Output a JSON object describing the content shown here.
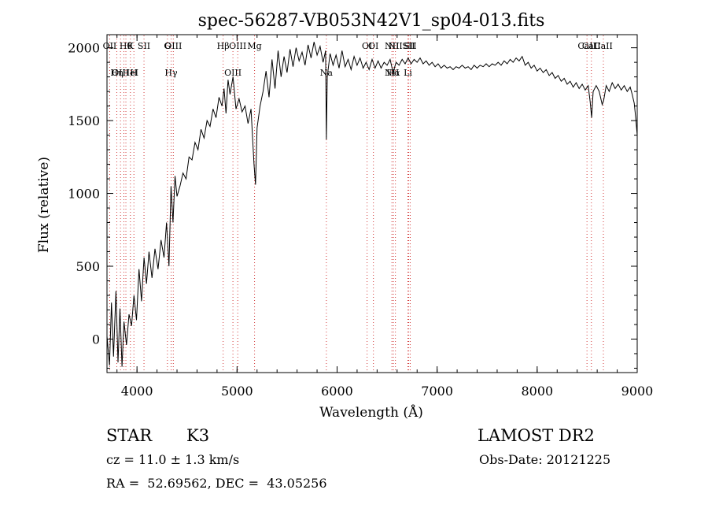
{
  "chart_data": {
    "type": "line",
    "title": "spec-56287-VB053N42V1_sp04-013.fits",
    "xlabel": "Wavelength (Å)",
    "ylabel": "Flux (relative)",
    "xlim": [
      3700,
      9000
    ],
    "ylim": [
      -230,
      2090
    ],
    "x_ticks": [
      4000,
      5000,
      6000,
      7000,
      8000,
      9000
    ],
    "y_ticks": [
      0,
      500,
      1000,
      1500,
      2000
    ],
    "grid": false,
    "series": [
      {
        "points": [
          [
            3700,
            20
          ],
          [
            3725,
            -180
          ],
          [
            3745,
            250
          ],
          [
            3765,
            -120
          ],
          [
            3790,
            330
          ],
          [
            3810,
            -160
          ],
          [
            3830,
            210
          ],
          [
            3850,
            -190
          ],
          [
            3870,
            120
          ],
          [
            3895,
            -40
          ],
          [
            3920,
            170
          ],
          [
            3945,
            90
          ],
          [
            3970,
            300
          ],
          [
            3995,
            130
          ],
          [
            4020,
            480
          ],
          [
            4045,
            260
          ],
          [
            4070,
            560
          ],
          [
            4095,
            380
          ],
          [
            4120,
            600
          ],
          [
            4150,
            420
          ],
          [
            4180,
            620
          ],
          [
            4210,
            480
          ],
          [
            4240,
            680
          ],
          [
            4270,
            560
          ],
          [
            4295,
            800
          ],
          [
            4320,
            500
          ],
          [
            4340,
            1050
          ],
          [
            4360,
            800
          ],
          [
            4380,
            1120
          ],
          [
            4400,
            980
          ],
          [
            4430,
            1050
          ],
          [
            4460,
            1140
          ],
          [
            4490,
            1100
          ],
          [
            4520,
            1250
          ],
          [
            4550,
            1230
          ],
          [
            4580,
            1350
          ],
          [
            4610,
            1300
          ],
          [
            4640,
            1440
          ],
          [
            4670,
            1380
          ],
          [
            4700,
            1500
          ],
          [
            4730,
            1460
          ],
          [
            4760,
            1580
          ],
          [
            4790,
            1520
          ],
          [
            4820,
            1660
          ],
          [
            4850,
            1600
          ],
          [
            4870,
            1720
          ],
          [
            4890,
            1550
          ],
          [
            4910,
            1780
          ],
          [
            4930,
            1680
          ],
          [
            4960,
            1800
          ],
          [
            4990,
            1580
          ],
          [
            5020,
            1650
          ],
          [
            5050,
            1560
          ],
          [
            5080,
            1600
          ],
          [
            5110,
            1480
          ],
          [
            5140,
            1580
          ],
          [
            5170,
            1200
          ],
          [
            5185,
            1060
          ],
          [
            5200,
            1450
          ],
          [
            5230,
            1600
          ],
          [
            5260,
            1700
          ],
          [
            5290,
            1840
          ],
          [
            5320,
            1660
          ],
          [
            5350,
            1920
          ],
          [
            5380,
            1720
          ],
          [
            5410,
            1980
          ],
          [
            5440,
            1800
          ],
          [
            5470,
            1940
          ],
          [
            5500,
            1830
          ],
          [
            5530,
            1990
          ],
          [
            5560,
            1870
          ],
          [
            5590,
            2000
          ],
          [
            5620,
            1910
          ],
          [
            5650,
            1970
          ],
          [
            5680,
            1880
          ],
          [
            5710,
            2020
          ],
          [
            5740,
            1930
          ],
          [
            5770,
            2040
          ],
          [
            5800,
            1950
          ],
          [
            5830,
            2010
          ],
          [
            5860,
            1900
          ],
          [
            5885,
            1980
          ],
          [
            5893,
            1370
          ],
          [
            5902,
            1800
          ],
          [
            5930,
            1960
          ],
          [
            5960,
            1880
          ],
          [
            5990,
            1950
          ],
          [
            6020,
            1860
          ],
          [
            6050,
            1980
          ],
          [
            6080,
            1870
          ],
          [
            6110,
            1920
          ],
          [
            6140,
            1850
          ],
          [
            6170,
            1940
          ],
          [
            6200,
            1880
          ],
          [
            6230,
            1930
          ],
          [
            6260,
            1860
          ],
          [
            6290,
            1900
          ],
          [
            6320,
            1850
          ],
          [
            6350,
            1920
          ],
          [
            6380,
            1860
          ],
          [
            6410,
            1910
          ],
          [
            6440,
            1860
          ],
          [
            6470,
            1900
          ],
          [
            6500,
            1880
          ],
          [
            6530,
            1920
          ],
          [
            6560,
            1830
          ],
          [
            6590,
            1900
          ],
          [
            6620,
            1880
          ],
          [
            6650,
            1920
          ],
          [
            6680,
            1890
          ],
          [
            6710,
            1930
          ],
          [
            6740,
            1890
          ],
          [
            6770,
            1920
          ],
          [
            6800,
            1900
          ],
          [
            6830,
            1930
          ],
          [
            6860,
            1890
          ],
          [
            6890,
            1910
          ],
          [
            6920,
            1880
          ],
          [
            6950,
            1900
          ],
          [
            6980,
            1870
          ],
          [
            7010,
            1890
          ],
          [
            7040,
            1860
          ],
          [
            7070,
            1880
          ],
          [
            7100,
            1860
          ],
          [
            7130,
            1870
          ],
          [
            7160,
            1850
          ],
          [
            7190,
            1870
          ],
          [
            7220,
            1860
          ],
          [
            7250,
            1880
          ],
          [
            7280,
            1860
          ],
          [
            7310,
            1870
          ],
          [
            7340,
            1850
          ],
          [
            7370,
            1880
          ],
          [
            7400,
            1860
          ],
          [
            7430,
            1880
          ],
          [
            7460,
            1870
          ],
          [
            7490,
            1890
          ],
          [
            7520,
            1870
          ],
          [
            7550,
            1890
          ],
          [
            7580,
            1880
          ],
          [
            7610,
            1900
          ],
          [
            7640,
            1880
          ],
          [
            7670,
            1910
          ],
          [
            7700,
            1890
          ],
          [
            7730,
            1920
          ],
          [
            7760,
            1900
          ],
          [
            7790,
            1930
          ],
          [
            7820,
            1910
          ],
          [
            7850,
            1940
          ],
          [
            7880,
            1880
          ],
          [
            7910,
            1900
          ],
          [
            7940,
            1860
          ],
          [
            7970,
            1880
          ],
          [
            8000,
            1840
          ],
          [
            8030,
            1860
          ],
          [
            8060,
            1830
          ],
          [
            8090,
            1850
          ],
          [
            8120,
            1810
          ],
          [
            8150,
            1830
          ],
          [
            8180,
            1790
          ],
          [
            8210,
            1810
          ],
          [
            8240,
            1770
          ],
          [
            8270,
            1790
          ],
          [
            8300,
            1750
          ],
          [
            8330,
            1770
          ],
          [
            8360,
            1730
          ],
          [
            8390,
            1760
          ],
          [
            8420,
            1720
          ],
          [
            8450,
            1750
          ],
          [
            8480,
            1710
          ],
          [
            8510,
            1740
          ],
          [
            8530,
            1630
          ],
          [
            8545,
            1520
          ],
          [
            8560,
            1700
          ],
          [
            8590,
            1740
          ],
          [
            8620,
            1700
          ],
          [
            8650,
            1610
          ],
          [
            8665,
            1640
          ],
          [
            8690,
            1740
          ],
          [
            8720,
            1700
          ],
          [
            8750,
            1760
          ],
          [
            8780,
            1720
          ],
          [
            8810,
            1750
          ],
          [
            8840,
            1710
          ],
          [
            8870,
            1740
          ],
          [
            8900,
            1700
          ],
          [
            8930,
            1730
          ],
          [
            8950,
            1680
          ],
          [
            8970,
            1620
          ],
          [
            8985,
            1520
          ],
          [
            9000,
            1400
          ]
        ]
      }
    ],
    "lines": [
      {
        "x": 3727,
        "top": "OII",
        "bottom": ""
      },
      {
        "x": 3798,
        "top": "",
        "bottom": "Hη"
      },
      {
        "x": 3835,
        "top": "",
        "bottom": "OIII"
      },
      {
        "x": 3869,
        "top": "",
        "bottom": ""
      },
      {
        "x": 3889,
        "top": "Hθ",
        "bottom": ""
      },
      {
        "x": 3934,
        "top": "K",
        "bottom": "HeI"
      },
      {
        "x": 3969,
        "top": "",
        "bottom": "H"
      },
      {
        "x": 4070,
        "top": "SII",
        "bottom": ""
      },
      {
        "x": 4304,
        "top": "G",
        "bottom": ""
      },
      {
        "x": 4341,
        "top": "",
        "bottom": "Hγ"
      },
      {
        "x": 4363,
        "top": "OIII",
        "bottom": ""
      },
      {
        "x": 4861,
        "top": "Hβ",
        "bottom": ""
      },
      {
        "x": 4959,
        "top": "",
        "bottom": "OIII"
      },
      {
        "x": 5007,
        "top": "OIII",
        "bottom": ""
      },
      {
        "x": 5175,
        "top": "Mg",
        "bottom": ""
      },
      {
        "x": 5893,
        "top": "",
        "bottom": "Na"
      },
      {
        "x": 6300,
        "top": "OI",
        "bottom": ""
      },
      {
        "x": 6363,
        "top": "OI",
        "bottom": ""
      },
      {
        "x": 6548,
        "top": "NII",
        "bottom": "NII"
      },
      {
        "x": 6563,
        "top": "",
        "bottom": "Hα"
      },
      {
        "x": 6583,
        "top": "NII",
        "bottom": ""
      },
      {
        "x": 6716,
        "top": "SII",
        "bottom": ""
      },
      {
        "x": 6731,
        "top": "SII",
        "bottom": ""
      },
      {
        "x": 6708,
        "top": "",
        "bottom": "Li"
      },
      {
        "x": 8498,
        "top": "CaII",
        "bottom": ""
      },
      {
        "x": 8542,
        "top": "CaII",
        "bottom": ""
      },
      {
        "x": 8662,
        "top": "CaII",
        "bottom": ""
      }
    ]
  },
  "info": {
    "object_type": "STAR",
    "subclass": "K3",
    "survey": "LAMOST DR2",
    "redshift": "cz = 11.0 ± 1.3 km/s",
    "obs_date": "Obs-Date: 20121225",
    "coords": "RA =  52.69562, DEC =  43.05256"
  },
  "colors": {
    "spectrum": "#000000",
    "line_marker": "#d23a3a",
    "axis": "#000000",
    "background": "#ffffff"
  }
}
